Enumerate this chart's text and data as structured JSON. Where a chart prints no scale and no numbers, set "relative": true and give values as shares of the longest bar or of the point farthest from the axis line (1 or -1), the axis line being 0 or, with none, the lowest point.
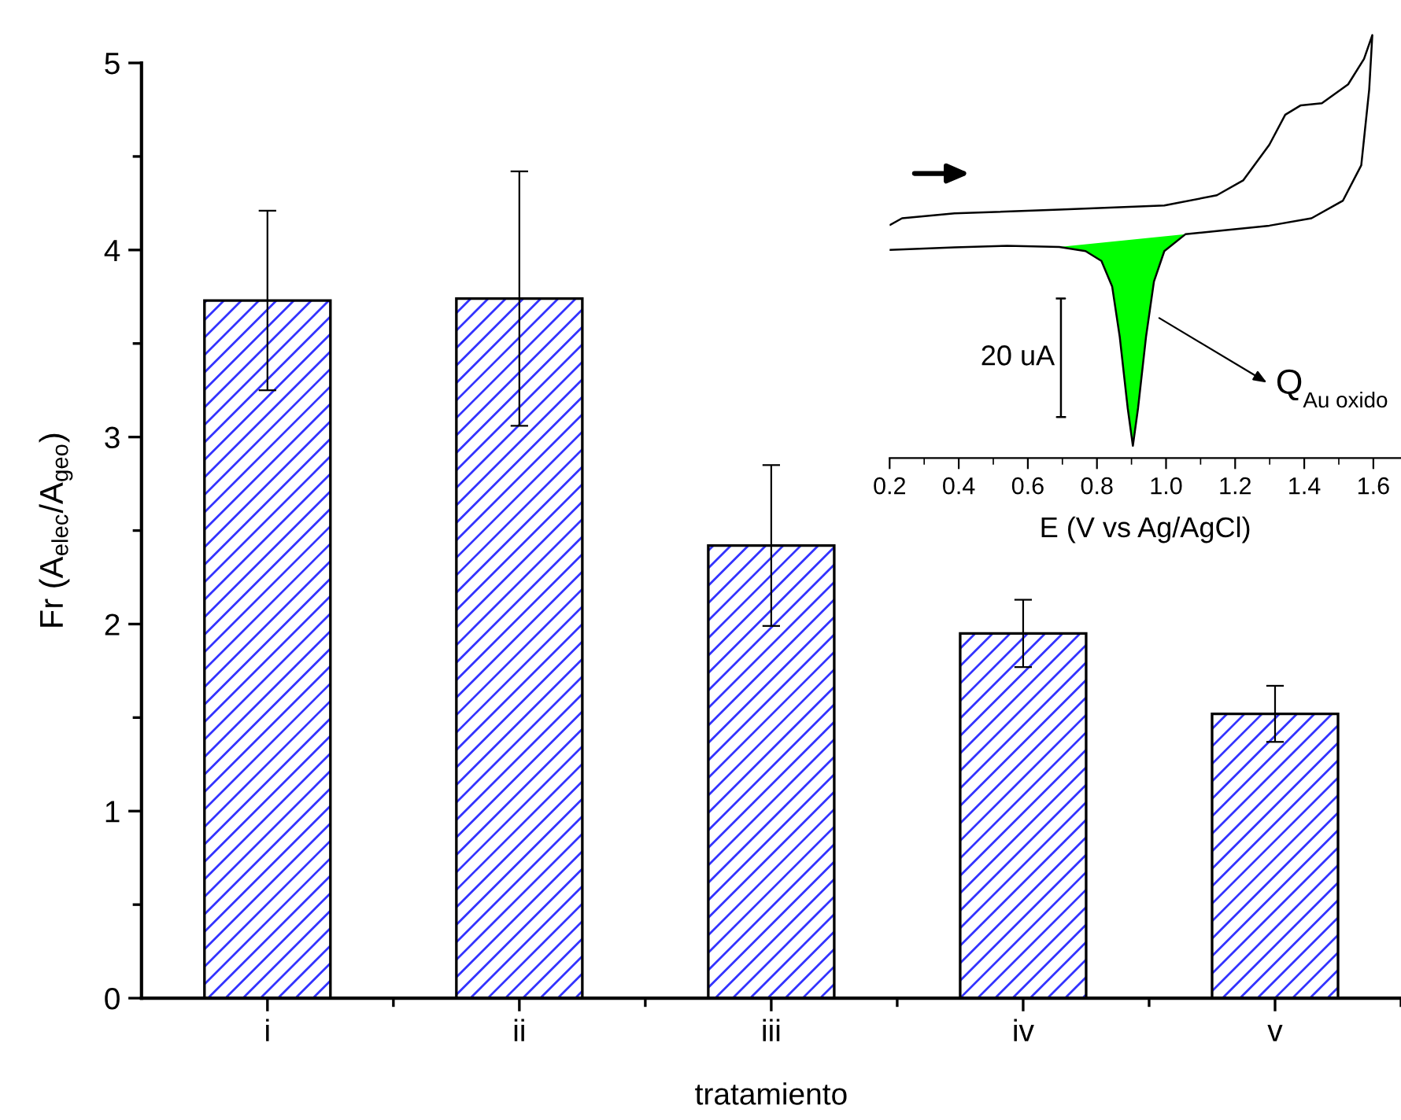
{
  "chart_data": [
    {
      "type": "bar",
      "xlabel": "tratamiento",
      "ylabel": "Fr (A$_{elec}$/A$_{geo}$)",
      "categories": [
        "i",
        "ii",
        "iii",
        "iv",
        "v"
      ],
      "values": [
        3.73,
        3.74,
        2.42,
        1.95,
        1.52
      ],
      "errors": [
        0.48,
        0.68,
        0.43,
        0.18,
        0.15
      ],
      "color": "#3333ff",
      "ylim": [
        0,
        5
      ],
      "yticks": [
        0,
        1,
        2,
        3,
        4,
        5
      ],
      "grid": false,
      "legend": false
    },
    {
      "type": "line",
      "xlabel": "E (V vs Ag/AgCl)",
      "relative": true,
      "tick_labels": "x",
      "xlim": [
        0.2,
        1.68
      ],
      "xticks": [
        {
          "value": 0.2,
          "label": "0.2"
        },
        {
          "value": 0.4,
          "label": "0.4"
        },
        {
          "value": 0.6,
          "label": "0.6"
        },
        {
          "value": 0.8,
          "label": "0.8"
        },
        {
          "value": 1.0,
          "label": "1.0"
        },
        {
          "value": 1.2,
          "label": "1.2"
        },
        {
          "value": 1.4,
          "label": "1.4"
        },
        {
          "value": 1.6,
          "label": "1.6"
        }
      ],
      "series": [
        {
          "type": "line",
          "color": "#000000",
          "x": [
            0.202,
            0.236,
            0.388,
            0.691,
            0.995,
            1.147,
            1.223,
            1.299,
            1.345,
            1.39,
            1.451,
            1.527,
            1.573,
            1.597,
            1.588,
            1.565,
            1.512,
            1.421,
            1.299,
            1.147,
            1.056,
            0.995,
            0.965,
            0.942,
            0.919,
            0.904,
            0.889,
            0.866,
            0.844,
            0.813,
            0.767,
            0.691,
            0.54,
            0.388,
            0.202
          ],
          "values": [
            0.538,
            0.554,
            0.566,
            0.575,
            0.585,
            0.61,
            0.646,
            0.733,
            0.806,
            0.829,
            0.834,
            0.88,
            0.942,
            1.0,
            0.868,
            0.683,
            0.597,
            0.554,
            0.536,
            0.523,
            0.515,
            0.474,
            0.4,
            0.265,
            0.092,
            0,
            0.092,
            0.265,
            0.388,
            0.45,
            0.474,
            0.484,
            0.487,
            0.483,
            0.477
          ]
        },
        {
          "type": "area",
          "color": "#00ff00",
          "x": [
            0.691,
            0.767,
            0.813,
            0.844,
            0.866,
            0.889,
            0.904,
            0.919,
            0.942,
            0.965,
            0.995,
            1.056,
            1.147
          ],
          "values": [
            0.484,
            0.474,
            0.45,
            0.388,
            0.265,
            0.092,
            0,
            0.092,
            0.265,
            0.4,
            0.474,
            0.515,
            0.523
          ]
        }
      ],
      "annotations": [
        "20 uA",
        "Q$_{Au oxido}$"
      ]
    }
  ]
}
